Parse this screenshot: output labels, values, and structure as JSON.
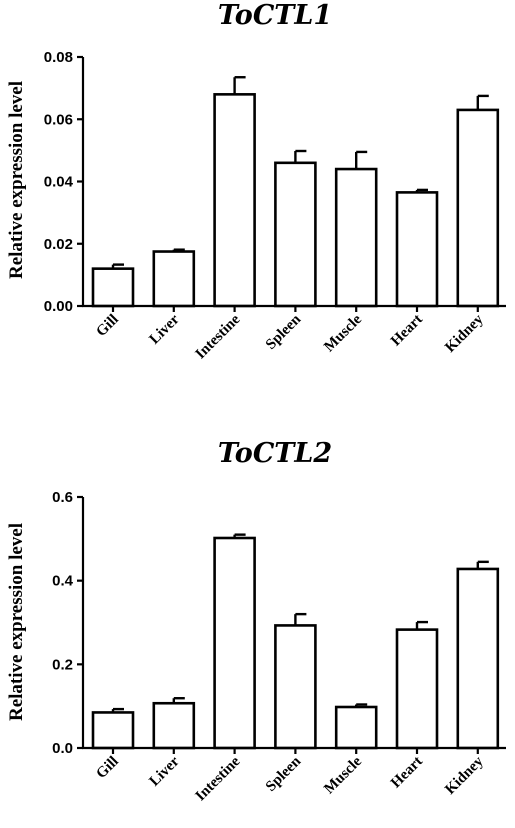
{
  "chart_data": [
    {
      "type": "bar",
      "title": "ToCTL1",
      "ylabel": "Relative expression level",
      "xlabel": "",
      "categories": [
        "Gill",
        "Liver",
        "Intestine",
        "Spleen",
        "Muscle",
        "Heart",
        "Kidney"
      ],
      "values": [
        0.012,
        0.0175,
        0.068,
        0.046,
        0.044,
        0.0365,
        0.063
      ],
      "errors": [
        0.0013,
        0.0006,
        0.0055,
        0.0038,
        0.0055,
        0.0008,
        0.0045
      ],
      "ylim": [
        0,
        0.08
      ],
      "yticks": [
        "0.00",
        "0.02",
        "0.04",
        "0.06",
        "0.08"
      ],
      "ytick_values": [
        0,
        0.02,
        0.04,
        0.06,
        0.08
      ],
      "grid": false,
      "legend": "none"
    },
    {
      "type": "bar",
      "title": "ToCTL2",
      "ylabel": "Relative expression level",
      "xlabel": "",
      "categories": [
        "Gill",
        "Liver",
        "Intestine",
        "Spleen",
        "Muscle",
        "Heart",
        "Kidney"
      ],
      "values": [
        0.085,
        0.107,
        0.502,
        0.293,
        0.098,
        0.283,
        0.428
      ],
      "errors": [
        0.008,
        0.012,
        0.008,
        0.027,
        0.006,
        0.018,
        0.017
      ],
      "ylim": [
        0,
        0.6
      ],
      "yticks": [
        "0.0",
        "0.2",
        "0.4",
        "0.6"
      ],
      "ytick_values": [
        0,
        0.2,
        0.4,
        0.6
      ],
      "grid": false,
      "legend": "none"
    }
  ]
}
